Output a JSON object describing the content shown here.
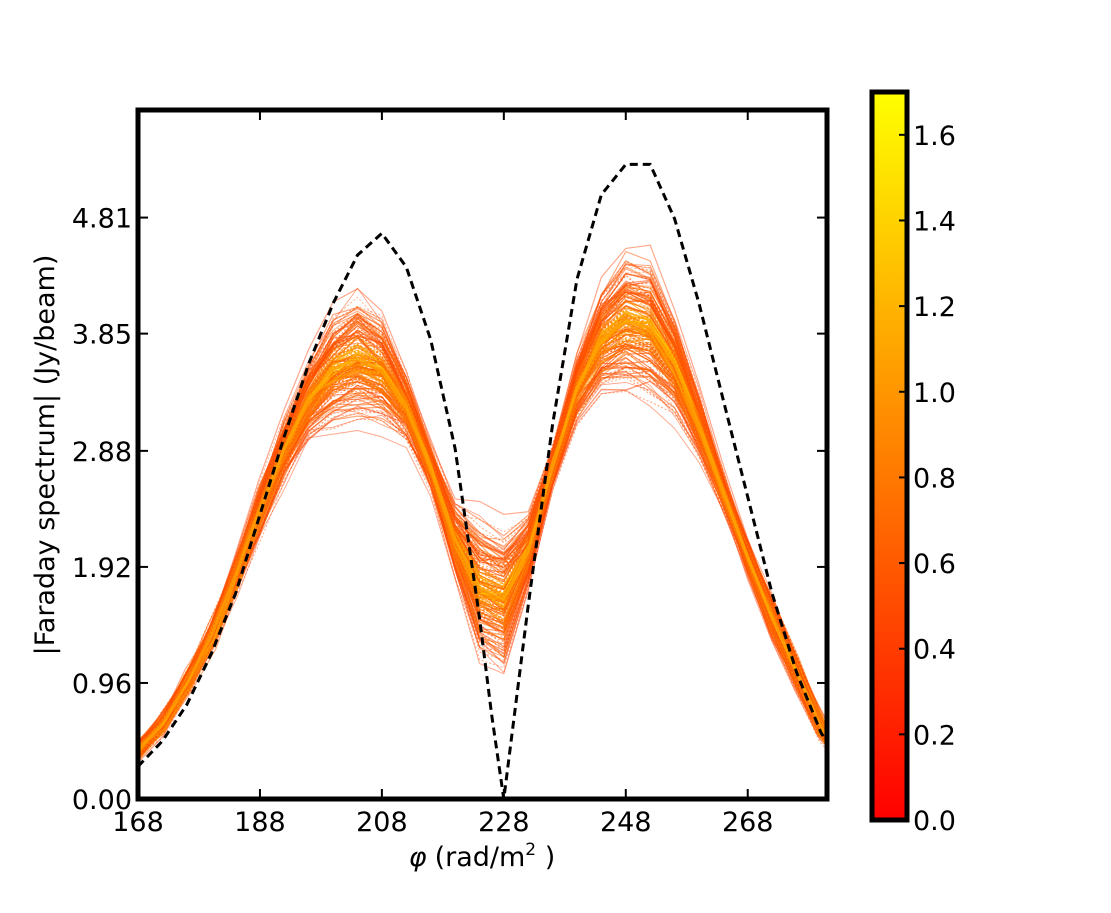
{
  "chart_data": {
    "type": "line",
    "xlabel_symbol": "φ",
    "xlabel_unit": "(rad/m",
    "xlabel_sup": "2",
    "xlabel_close": " )",
    "ylabel": "|Faraday spectrum| (Jy/beam)",
    "xlim": [
      168,
      281
    ],
    "ylim": [
      0,
      5.7
    ],
    "x_ticks": [
      168,
      188,
      208,
      228,
      248,
      268
    ],
    "x_tick_labels": [
      "168",
      "188",
      "208",
      "228",
      "248",
      "268"
    ],
    "y_ticks": [
      0.0,
      0.96,
      1.92,
      2.88,
      3.85,
      4.81
    ],
    "y_tick_labels": [
      "0.00",
      "0.96",
      "1.92",
      "2.88",
      "3.85",
      "4.81"
    ],
    "grid": false,
    "reference_curve": {
      "style": "black dashed",
      "x": [
        168,
        172,
        176,
        180,
        184,
        188,
        192,
        196,
        200,
        204,
        208,
        212,
        216,
        220,
        224,
        226,
        228,
        230,
        232,
        236,
        240,
        244,
        248,
        252,
        256,
        260,
        264,
        268,
        272,
        276,
        280,
        281
      ],
      "y": [
        0.27,
        0.48,
        0.78,
        1.2,
        1.7,
        2.35,
        3.0,
        3.6,
        4.1,
        4.5,
        4.68,
        4.4,
        3.8,
        2.9,
        1.5,
        0.7,
        0.0,
        0.8,
        1.6,
        3.1,
        4.3,
        5.0,
        5.25,
        5.25,
        4.8,
        4.1,
        3.3,
        2.5,
        1.7,
        1.05,
        0.55,
        0.47
      ]
    },
    "ensemble_mean": {
      "x": [
        168,
        172,
        176,
        180,
        184,
        188,
        192,
        196,
        200,
        204,
        208,
        212,
        216,
        220,
        224,
        228,
        232,
        236,
        240,
        244,
        248,
        252,
        256,
        260,
        264,
        268,
        272,
        276,
        280,
        281
      ],
      "y": [
        0.4,
        0.62,
        0.95,
        1.35,
        1.85,
        2.4,
        2.9,
        3.3,
        3.55,
        3.65,
        3.55,
        3.25,
        2.75,
        2.15,
        1.75,
        1.65,
        2.05,
        2.75,
        3.4,
        3.8,
        3.95,
        3.9,
        3.6,
        3.1,
        2.55,
        2.0,
        1.5,
        1.05,
        0.6,
        0.52
      ]
    },
    "ensemble_count": 180,
    "colorbar": {
      "colormap": "autumn",
      "colors": [
        "#ff0000",
        "#ffff00"
      ],
      "range": [
        0.0,
        1.7
      ],
      "ticks": [
        0.0,
        0.2,
        0.4,
        0.6,
        0.8,
        1.0,
        1.2,
        1.4,
        1.6
      ],
      "tick_labels": [
        "0.0",
        "0.2",
        "0.4",
        "0.6",
        "0.8",
        "1.0",
        "1.2",
        "1.4",
        "1.6"
      ]
    }
  }
}
